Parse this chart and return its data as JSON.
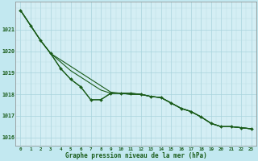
{
  "title": "Graphe pression niveau de la mer (hPa)",
  "bg_color": "#c2e8f0",
  "plot_bg_color": "#d4eef4",
  "grid_color_major": "#a8d4dc",
  "grid_color_minor": "#b8dce4",
  "line_color": "#1a5c1a",
  "hours": [
    0,
    1,
    2,
    3,
    4,
    5,
    6,
    7,
    8,
    9,
    10,
    11,
    12,
    13,
    14,
    15,
    16,
    17,
    18,
    19,
    20,
    21,
    22,
    23
  ],
  "line_marker": [
    1021.9,
    1021.2,
    1020.5,
    1019.9,
    1019.2,
    1018.7,
    1018.35,
    1017.75,
    1017.75,
    1018.05,
    1018.05,
    1018.05,
    1018.0,
    1017.9,
    1017.85,
    1017.6,
    1017.35,
    1017.2,
    1016.95,
    1016.65,
    1016.5,
    1016.5,
    1016.45,
    1016.4
  ],
  "line_a": [
    1021.9,
    1021.2,
    1020.5,
    1019.9,
    1019.6,
    1019.3,
    1019.0,
    1018.7,
    1018.4,
    1018.1,
    1018.05,
    1018.0,
    1018.0,
    1017.9,
    1017.85,
    1017.6,
    1017.35,
    1017.2,
    1016.95,
    1016.65,
    1016.5,
    1016.5,
    1016.45,
    1016.4
  ],
  "line_b": [
    1021.9,
    1021.2,
    1020.5,
    1019.9,
    1019.5,
    1019.1,
    1018.8,
    1018.5,
    1018.2,
    1018.05,
    1018.05,
    1018.0,
    1018.0,
    1017.9,
    1017.85,
    1017.6,
    1017.35,
    1017.2,
    1016.95,
    1016.65,
    1016.5,
    1016.5,
    1016.45,
    1016.4
  ],
  "line_c": [
    1021.9,
    1021.2,
    1020.5,
    1019.9,
    1019.2,
    1018.7,
    1018.35,
    1017.75,
    1017.75,
    1018.05,
    1018.05,
    1018.05,
    1018.0,
    1017.9,
    1017.85,
    1017.6,
    1017.35,
    1017.2,
    1016.95,
    1016.65,
    1016.5,
    1016.5,
    1016.45,
    1016.4
  ],
  "ylim": [
    1015.6,
    1022.3
  ],
  "yticks": [
    1016,
    1017,
    1018,
    1019,
    1020,
    1021
  ],
  "xlim": [
    -0.5,
    23.5
  ],
  "xticks": [
    0,
    1,
    2,
    3,
    4,
    5,
    6,
    7,
    8,
    9,
    10,
    11,
    12,
    13,
    14,
    15,
    16,
    17,
    18,
    19,
    20,
    21,
    22,
    23
  ]
}
